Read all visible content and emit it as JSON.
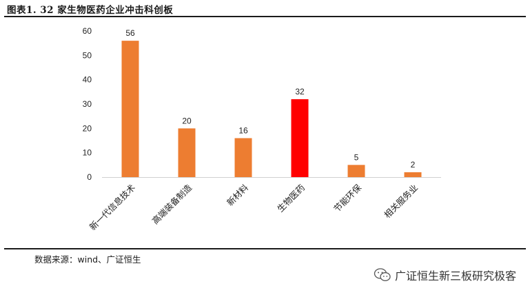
{
  "figure": {
    "title": "图表1.  32 家生物医药企业冲击科创板",
    "source": "数据来源：wind、广证恒生",
    "watermark": "广证恒生新三板研究极客",
    "watermark_icon": "wechat-icon"
  },
  "chart_data": {
    "type": "bar",
    "categories": [
      "新一代信息技术",
      "高端装备制造",
      "新材料",
      "生物医药",
      "节能环保",
      "相关服务业"
    ],
    "values": [
      56,
      20,
      16,
      32,
      5,
      2
    ],
    "ylim": [
      0,
      60
    ],
    "yticks": [
      0,
      10,
      20,
      30,
      40,
      50,
      60
    ],
    "grid": false,
    "legend": "none",
    "bar_color": "#ED7D31",
    "highlight_color": "#FF0000",
    "highlight_category": "生物医药",
    "data_labels": true
  }
}
